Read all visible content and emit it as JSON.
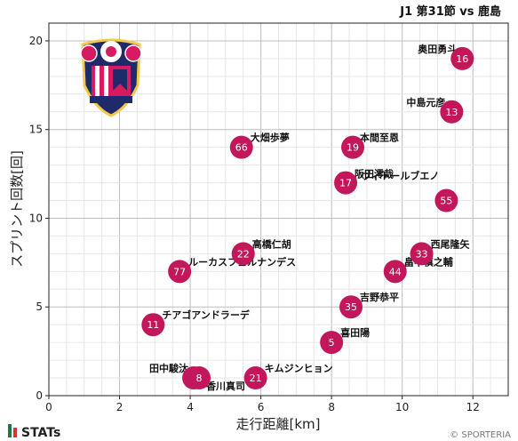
{
  "header": {
    "match_label": "J1 第31節 vs 鹿島"
  },
  "footer": {
    "brand": "STATs",
    "credit": "© SPORTERIA"
  },
  "chart_data": {
    "type": "scatter",
    "xlabel": "走行距離[km]",
    "ylabel": "スプリント回数[回]",
    "xlim": [
      0,
      13
    ],
    "ylim": [
      0,
      21
    ],
    "x_ticks": [
      0,
      2,
      4,
      6,
      8,
      10,
      12
    ],
    "y_ticks": [
      0,
      5,
      10,
      15,
      20
    ],
    "grid": true,
    "marker_color": "#c2185b",
    "points": [
      {
        "name": "奥田勇斗",
        "number": "16",
        "x": 11.7,
        "y": 19
      },
      {
        "name": "中島元彦",
        "number": "13",
        "x": 11.4,
        "y": 16
      },
      {
        "name": "大畑歩夢",
        "number": "66",
        "x": 5.45,
        "y": 14
      },
      {
        "name": "本間至恩",
        "number": "19",
        "x": 8.6,
        "y": 14
      },
      {
        "name": "阪田澪哉",
        "number": "17",
        "x": 8.4,
        "y": 12
      },
      {
        "name": "ヴィトールブエノ",
        "number": "55",
        "x": 11.25,
        "y": 11
      },
      {
        "name": "高橋仁胡",
        "number": "22",
        "x": 5.5,
        "y": 8
      },
      {
        "name": "西尾隆矢",
        "number": "33",
        "x": 10.55,
        "y": 8
      },
      {
        "name": "ルーカスフェルナンデス",
        "number": "77",
        "x": 3.7,
        "y": 7
      },
      {
        "name": "畠中槙之輔",
        "number": "44",
        "x": 9.8,
        "y": 7
      },
      {
        "name": "吉野恭平",
        "number": "35",
        "x": 8.55,
        "y": 5
      },
      {
        "name": "チアゴアンドラーデ",
        "number": "11",
        "x": 2.95,
        "y": 4
      },
      {
        "name": "喜田陽",
        "number": "5",
        "x": 8.0,
        "y": 3
      },
      {
        "name": "田中駿汰",
        "number": "10",
        "x": 4.1,
        "y": 1
      },
      {
        "name": "香川真司",
        "number": "8",
        "x": 4.25,
        "y": 1
      },
      {
        "name": "キムジンヒョン",
        "number": "21",
        "x": 5.85,
        "y": 1
      }
    ]
  }
}
